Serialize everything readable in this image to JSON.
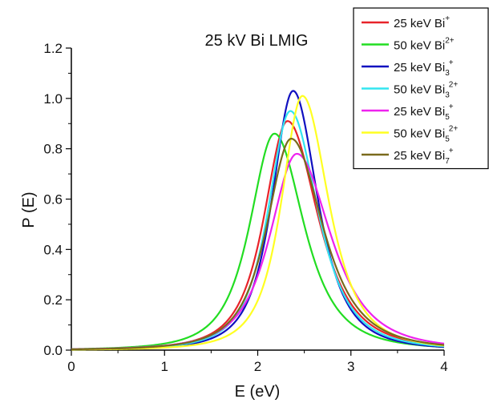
{
  "chart_data": {
    "type": "line",
    "title": "25 kV Bi LMIG",
    "xlabel": "E (eV)",
    "ylabel": "P (E)",
    "xlim": [
      0,
      4
    ],
    "ylim": [
      0,
      1.2
    ],
    "xticks": [
      "0",
      "1",
      "2",
      "3",
      "4"
    ],
    "yticks": [
      "0.0",
      "0.2",
      "0.4",
      "0.6",
      "0.8",
      "1.0",
      "1.2"
    ],
    "grid": false,
    "legend_position": "top-right",
    "series": [
      {
        "name": "25 keV Bi+",
        "color": "#e8232a",
        "peak_x": 2.32,
        "peak_y": 0.91,
        "width_left": 0.4,
        "width_right": 0.52,
        "legend": {
          "base": "25 keV Bi",
          "sub": "",
          "sup": "+"
        }
      },
      {
        "name": "50 keV Bi2+",
        "color": "#22dd22",
        "peak_x": 2.18,
        "peak_y": 0.86,
        "width_left": 0.42,
        "width_right": 0.5,
        "legend": {
          "base": "50 keV Bi",
          "sub": "",
          "sup": "2+"
        }
      },
      {
        "name": "25 keV Bi3+",
        "color": "#1010c0",
        "peak_x": 2.38,
        "peak_y": 1.03,
        "width_left": 0.36,
        "width_right": 0.42,
        "legend": {
          "base": "25 keV Bi",
          "sub": "3",
          "sup": "+"
        }
      },
      {
        "name": "50 keV Bi32+",
        "color": "#33e5f0",
        "peak_x": 2.35,
        "peak_y": 0.95,
        "width_left": 0.38,
        "width_right": 0.47,
        "legend": {
          "base": "50 keV Bi",
          "sub": "3",
          "sup": "2+"
        }
      },
      {
        "name": "25 keV Bi5+",
        "color": "#ee22ee",
        "peak_x": 2.42,
        "peak_y": 0.78,
        "width_left": 0.46,
        "width_right": 0.58,
        "legend": {
          "base": "25 keV Bi",
          "sub": "5",
          "sup": "+"
        }
      },
      {
        "name": "50 keV Bi52+",
        "color": "#ffff22",
        "peak_x": 2.48,
        "peak_y": 1.01,
        "width_left": 0.36,
        "width_right": 0.45,
        "legend": {
          "base": "50 keV Bi",
          "sub": "5",
          "sup": "2+"
        }
      },
      {
        "name": "25 keV Bi7+",
        "color": "#7a6a1c",
        "peak_x": 2.36,
        "peak_y": 0.84,
        "width_left": 0.42,
        "width_right": 0.54,
        "legend": {
          "base": "25 keV Bi",
          "sub": "7",
          "sup": "+"
        }
      }
    ]
  }
}
